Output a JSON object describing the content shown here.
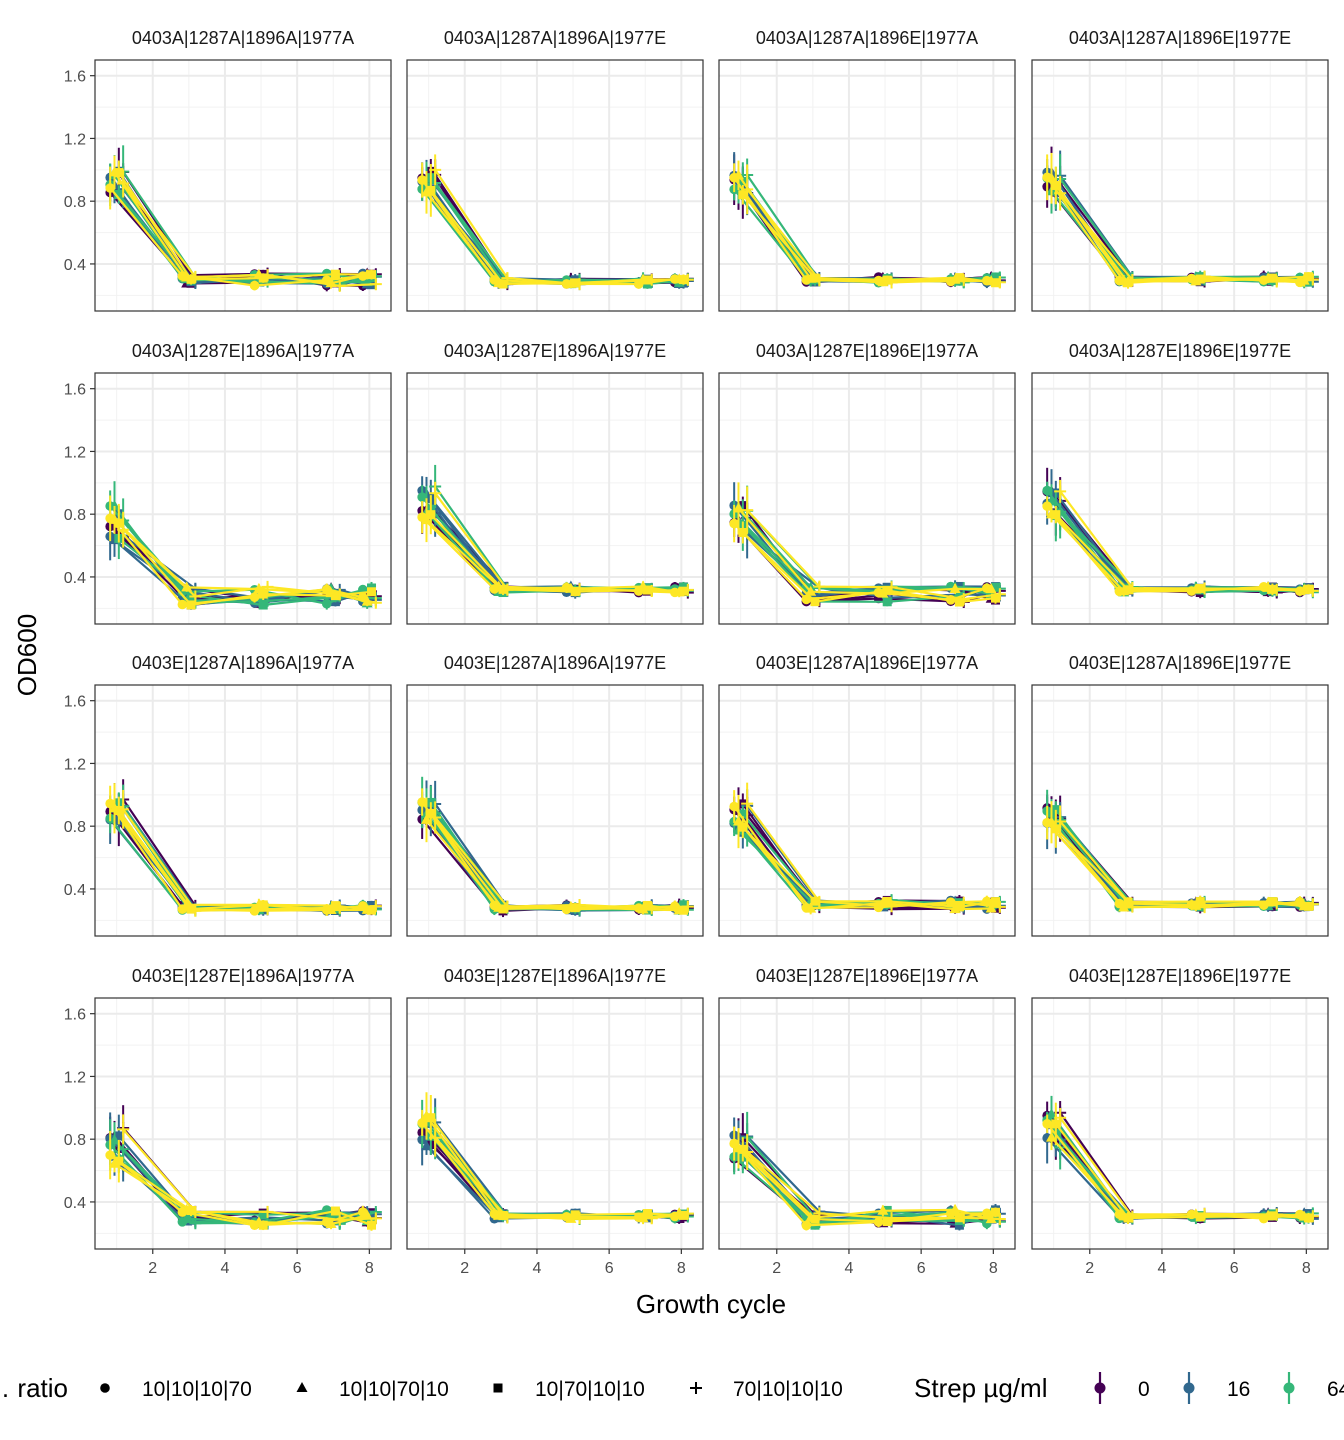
{
  "chart_data": {
    "type": "line",
    "xlabel": "Growth cycle",
    "ylabel": "OD600",
    "xlim": [
      0.4,
      8.6
    ],
    "ylim": [
      0.1,
      1.7
    ],
    "x_ticks": [
      2,
      4,
      6,
      8
    ],
    "y_ticks": [
      0.4,
      0.8,
      1.2,
      1.6
    ],
    "x_tick_labels": [
      "2",
      "4",
      "6",
      "8"
    ],
    "y_tick_labels": [
      "0.4",
      "0.8",
      "1.2",
      "1.6"
    ],
    "grid": true,
    "legend_position": "bottom",
    "legend": {
      "shape_title": "… ratio",
      "shapes": [
        {
          "label": "10|10|10|70",
          "shape": "circle"
        },
        {
          "label": "10|10|70|10",
          "shape": "triangle"
        },
        {
          "label": "10|70|10|10",
          "shape": "square"
        },
        {
          "label": "70|10|10|10",
          "shape": "plus"
        }
      ],
      "color_title": "Strep µg/ml",
      "colors": [
        {
          "label": "0",
          "color": "#440154"
        },
        {
          "label": "16",
          "color": "#31688E"
        },
        {
          "label": "64",
          "color": "#35B779"
        },
        {
          "label": "",
          "color": "#FDE725"
        }
      ]
    },
    "x": [
      1,
      3,
      5,
      7,
      8
    ],
    "panels": [
      {
        "title": "0403A|1287A|1896A|1977A",
        "start": 0.92,
        "late": 0.3,
        "start_spread": 0.08,
        "late_spread": 0.04
      },
      {
        "title": "0403A|1287A|1896A|1977E",
        "start": 0.93,
        "late": 0.29,
        "start_spread": 0.08,
        "late_spread": 0.02
      },
      {
        "title": "0403A|1287A|1896E|1977A",
        "start": 0.9,
        "late": 0.3,
        "start_spread": 0.07,
        "late_spread": 0.02
      },
      {
        "title": "0403A|1287A|1896E|1977E",
        "start": 0.92,
        "late": 0.3,
        "start_spread": 0.07,
        "late_spread": 0.02
      },
      {
        "title": "0403A|1287E|1896A|1977A",
        "start": 0.78,
        "late": 0.28,
        "start_spread": 0.2,
        "late_spread": 0.06
      },
      {
        "title": "0403A|1287E|1896A|1977E",
        "start": 0.86,
        "late": 0.32,
        "start_spread": 0.12,
        "late_spread": 0.02
      },
      {
        "title": "0403A|1287E|1896E|1977A",
        "start": 0.75,
        "late": 0.29,
        "start_spread": 0.12,
        "late_spread": 0.05
      },
      {
        "title": "0403A|1287E|1896E|1977E",
        "start": 0.85,
        "late": 0.32,
        "start_spread": 0.12,
        "late_spread": 0.02
      },
      {
        "title": "0403E|1287A|1896A|1977A",
        "start": 0.9,
        "late": 0.28,
        "start_spread": 0.07,
        "late_spread": 0.02
      },
      {
        "title": "0403E|1287A|1896A|1977E",
        "start": 0.9,
        "late": 0.28,
        "start_spread": 0.06,
        "late_spread": 0.02
      },
      {
        "title": "0403E|1287A|1896E|1977A",
        "start": 0.85,
        "late": 0.3,
        "start_spread": 0.1,
        "late_spread": 0.03
      },
      {
        "title": "0403E|1287A|1896E|1977E",
        "start": 0.85,
        "late": 0.3,
        "start_spread": 0.07,
        "late_spread": 0.02
      },
      {
        "title": "0403E|1287E|1896A|1977A",
        "start": 0.75,
        "late": 0.3,
        "start_spread": 0.13,
        "late_spread": 0.05
      },
      {
        "title": "0403E|1287E|1896A|1977E",
        "start": 0.86,
        "late": 0.31,
        "start_spread": 0.12,
        "late_spread": 0.02
      },
      {
        "title": "0403E|1287E|1896E|1977A",
        "start": 0.75,
        "late": 0.3,
        "start_spread": 0.08,
        "late_spread": 0.05
      },
      {
        "title": "0403E|1287E|1896E|1977E",
        "start": 0.85,
        "late": 0.31,
        "start_spread": 0.12,
        "late_spread": 0.02
      }
    ]
  }
}
